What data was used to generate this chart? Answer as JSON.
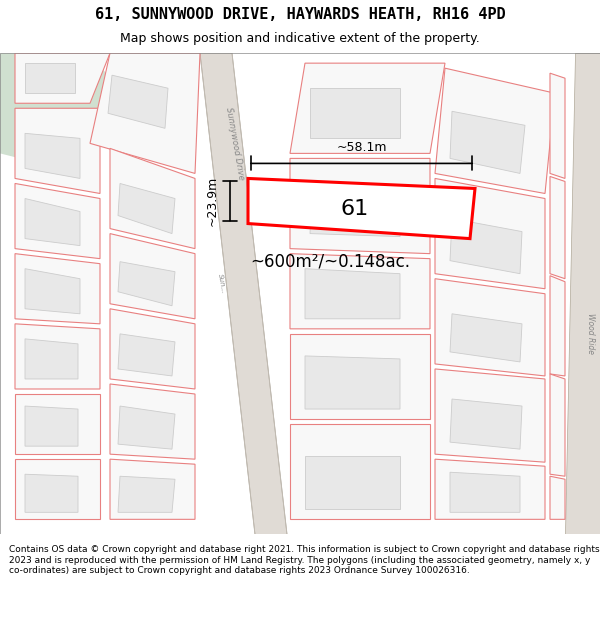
{
  "title": "61, SUNNYWOOD DRIVE, HAYWARDS HEATH, RH16 4PD",
  "subtitle": "Map shows position and indicative extent of the property.",
  "footer": "Contains OS data © Crown copyright and database right 2021. This information is subject to Crown copyright and database rights 2023 and is reproduced with the permission of HM Land Registry. The polygons (including the associated geometry, namely x, y co-ordinates) are subject to Crown copyright and database rights 2023 Ordnance Survey 100026316.",
  "bg_color": "#f5f0ec",
  "map_bg": "#f5f0ec",
  "road_bg": "#e8e4e0",
  "plot_fill": "#ffffff",
  "plot_outline": "#ff0000",
  "plot_label": "61",
  "area_label": "~600m²/~0.148ac.",
  "width_label": "~58.1m",
  "height_label": "~23.9m",
  "street_color": "#d0c8c0",
  "green_area": "#d0e0d0",
  "parcel_line_color": "#e88080",
  "building_fill": "#e8e8e8",
  "building_outline": "#d0c0c0",
  "road_line_color": "#c8c0b8"
}
